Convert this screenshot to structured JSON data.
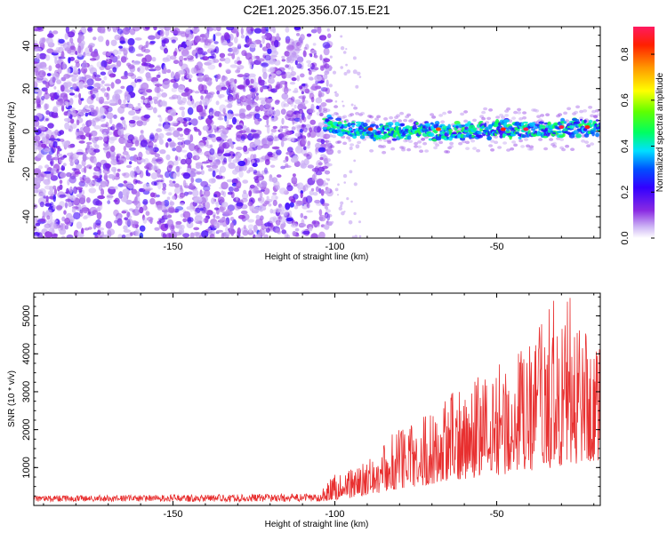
{
  "title": "C2E1.2025.356.07.15.E21",
  "chart_data": [
    {
      "type": "heatmap",
      "title": "C2E1.2025.356.07.15.E21",
      "xlabel": "Height of straight line (km)",
      "ylabel": "Frequency (Hz)",
      "xlim": [
        -193,
        -18
      ],
      "ylim": [
        -50,
        49
      ],
      "x_ticks": [
        -150,
        -100,
        -50
      ],
      "y_ticks": [
        -40,
        -20,
        0,
        20,
        40
      ],
      "noise_region_x": [
        -193,
        -103
      ],
      "signal_start_x": -103,
      "signal_center_hz": [
        {
          "x": -102,
          "y": 3
        },
        {
          "x": -90,
          "y": 0
        },
        {
          "x": -75,
          "y": 0
        },
        {
          "x": -60,
          "y": 0
        },
        {
          "x": -50,
          "y": 1
        },
        {
          "x": -35,
          "y": 1
        },
        {
          "x": -18,
          "y": 2
        }
      ],
      "signal_halfwidth_hz": 4,
      "peak_amplitude_markers": [
        {
          "x": -89,
          "y": 1,
          "value": 0.85
        },
        {
          "x": -68,
          "y": 1,
          "value": 0.8
        },
        {
          "x": -48,
          "y": 1,
          "value": 0.85
        },
        {
          "x": -41,
          "y": 1,
          "value": 0.9
        },
        {
          "x": -30,
          "y": 2,
          "value": 0.9
        },
        {
          "x": -22,
          "y": 2,
          "value": 0.85
        }
      ],
      "colorbar": {
        "label": "Normalized spectral amplitude",
        "range": [
          0.0,
          0.92
        ],
        "ticks": [
          0.0,
          0.2,
          0.4,
          0.6,
          0.8
        ],
        "tick_labels": [
          "0.0",
          "0.2",
          "0.4",
          "0.6",
          "0.8"
        ],
        "colormap": [
          {
            "value": 0.0,
            "color": "#ffffff"
          },
          {
            "value": 0.05,
            "color": "#cdb4f5"
          },
          {
            "value": 0.12,
            "color": "#8a2be2"
          },
          {
            "value": 0.22,
            "color": "#3200ff"
          },
          {
            "value": 0.3,
            "color": "#0050ff"
          },
          {
            "value": 0.38,
            "color": "#00e0ff"
          },
          {
            "value": 0.46,
            "color": "#00ff60"
          },
          {
            "value": 0.55,
            "color": "#60ff00"
          },
          {
            "value": 0.64,
            "color": "#ffff00"
          },
          {
            "value": 0.74,
            "color": "#ff9a00"
          },
          {
            "value": 0.84,
            "color": "#ff2000"
          },
          {
            "value": 0.92,
            "color": "#ff1a60"
          }
        ]
      }
    },
    {
      "type": "line",
      "xlabel": "Height of straight line (km)",
      "ylabel": "SNR (10 * v/v)",
      "xlim": [
        -193,
        -18
      ],
      "ylim": [
        0,
        5600
      ],
      "x_ticks": [
        -150,
        -100,
        -50
      ],
      "y_ticks": [
        1000,
        2000,
        3000,
        4000,
        5000
      ],
      "series": [
        {
          "name": "SNR",
          "color": "#e83030",
          "envelope": [
            {
              "x": -193,
              "y": 260
            },
            {
              "x": -150,
              "y": 280
            },
            {
              "x": -105,
              "y": 310
            },
            {
              "x": -100,
              "y": 900
            },
            {
              "x": -90,
              "y": 1150
            },
            {
              "x": -80,
              "y": 2150
            },
            {
              "x": -70,
              "y": 2500
            },
            {
              "x": -60,
              "y": 3300
            },
            {
              "x": -50,
              "y": 3800
            },
            {
              "x": -40,
              "y": 4300
            },
            {
              "x": -33,
              "y": 5400
            },
            {
              "x": -28,
              "y": 5600
            },
            {
              "x": -18,
              "y": 4400
            }
          ],
          "floor": [
            {
              "x": -193,
              "y": 100
            },
            {
              "x": -105,
              "y": 100
            },
            {
              "x": -95,
              "y": 200
            },
            {
              "x": -75,
              "y": 500
            },
            {
              "x": -60,
              "y": 700
            },
            {
              "x": -40,
              "y": 900
            },
            {
              "x": -18,
              "y": 1200
            }
          ]
        }
      ]
    }
  ]
}
